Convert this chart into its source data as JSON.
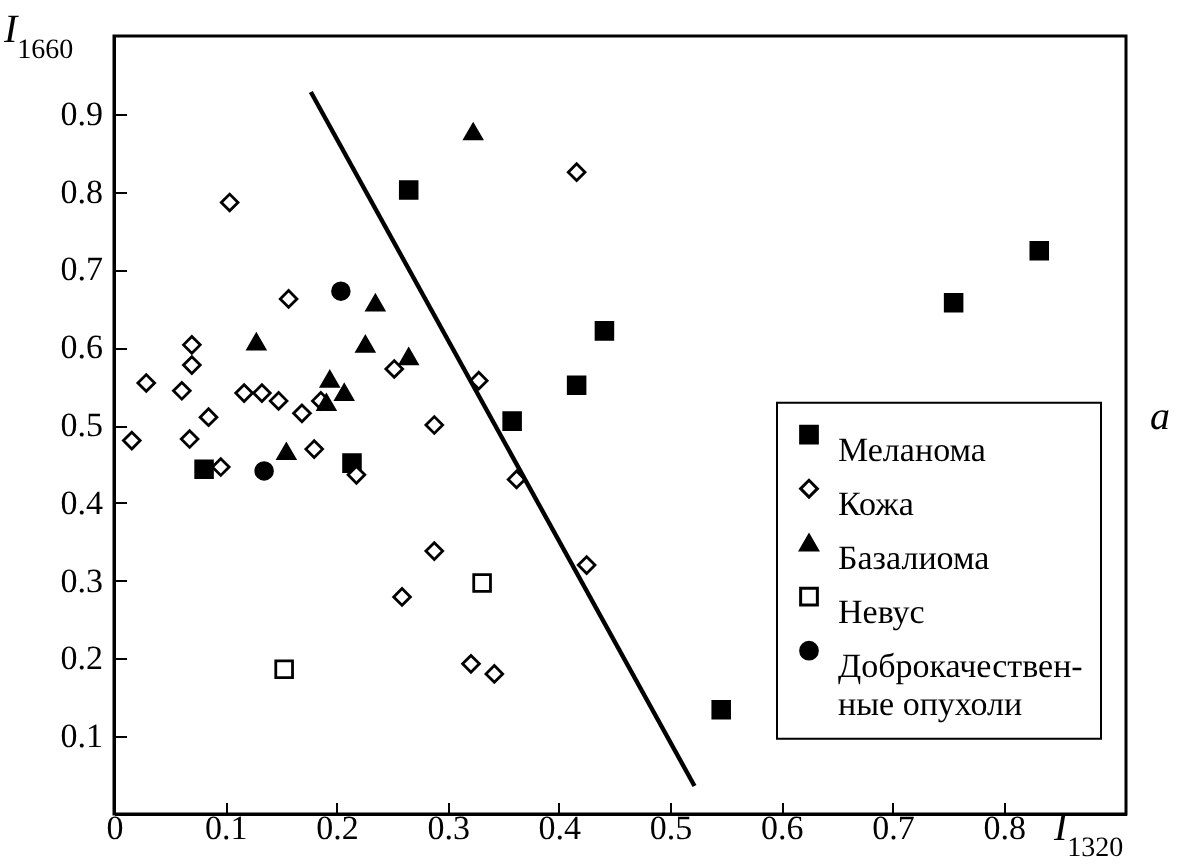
{
  "chart_data": {
    "type": "scatter",
    "xlabel": "I$_{1320}$",
    "ylabel": "I$_{1660}$",
    "xlim": [
      0,
      0.91
    ],
    "ylim": [
      0,
      1.0
    ],
    "xticks": [
      0,
      0.1,
      0.2,
      0.3,
      0.4,
      0.5,
      0.6,
      0.7,
      0.8
    ],
    "yticks": [
      0.1,
      0.2,
      0.3,
      0.4,
      0.5,
      0.6,
      0.7,
      0.8,
      0.9
    ],
    "grid": false,
    "legend": "right",
    "annotations": [
      "a"
    ],
    "series": [
      {
        "name": "Меланома",
        "color": "#000000",
        "marker": "square",
        "x": [
          0.265,
          0.441,
          0.416,
          0.358,
          0.081,
          0.214,
          0.832,
          0.755,
          0.546
        ],
        "values": [
          0.802,
          0.621,
          0.551,
          0.505,
          0.443,
          0.451,
          0.724,
          0.657,
          0.134
        ]
      },
      {
        "name": "Кожа",
        "color": "#ffffff",
        "marker": "diamond",
        "x": [
          0.104,
          0.416,
          0.157,
          0.07,
          0.07,
          0.029,
          0.061,
          0.117,
          0.133,
          0.148,
          0.085,
          0.169,
          0.186,
          0.252,
          0.328,
          0.288,
          0.016,
          0.068,
          0.096,
          0.18,
          0.218,
          0.362,
          0.425,
          0.288,
          0.259,
          0.321,
          0.342
        ],
        "values": [
          0.786,
          0.825,
          0.662,
          0.603,
          0.577,
          0.554,
          0.544,
          0.541,
          0.541,
          0.531,
          0.51,
          0.515,
          0.531,
          0.572,
          0.557,
          0.5,
          0.48,
          0.482,
          0.446,
          0.469,
          0.436,
          0.43,
          0.32,
          0.338,
          0.279,
          0.193,
          0.18
        ]
      },
      {
        "name": "Базалиома",
        "color": "#000000",
        "marker": "triangle",
        "x": [
          0.323,
          0.128,
          0.235,
          0.226,
          0.265,
          0.194,
          0.207,
          0.191,
          0.155
        ],
        "values": [
          0.877,
          0.607,
          0.657,
          0.604,
          0.588,
          0.559,
          0.542,
          0.529,
          0.466
        ]
      },
      {
        "name": "Невус",
        "color": "#ffffff",
        "marker": "square",
        "x": [
          0.153,
          0.331
        ],
        "values": [
          0.186,
          0.297
        ]
      },
      {
        "name": "Доброкачествен-\nные опухоли",
        "color": "#000000",
        "marker": "circle",
        "x": [
          0.204,
          0.135
        ],
        "values": [
          0.672,
          0.441
        ]
      },
      {
        "type": "line",
        "color": "#000000",
        "line_style": "solid",
        "x": [
          0.177,
          0.522
        ],
        "values": [
          0.928,
          0.036
        ]
      }
    ]
  }
}
